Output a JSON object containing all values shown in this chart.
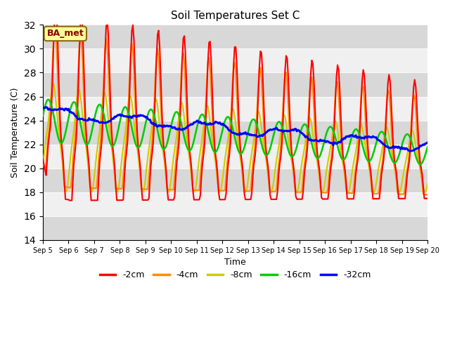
{
  "title": "Soil Temperatures Set C",
  "xlabel": "Time",
  "ylabel": "Soil Temperature (C)",
  "ylim": [
    14,
    32
  ],
  "yticks": [
    14,
    16,
    18,
    20,
    22,
    24,
    26,
    28,
    30,
    32
  ],
  "background_color": "#ffffff",
  "plot_bg_light": "#f0f0f0",
  "plot_bg_dark": "#d8d8d8",
  "annotation_text": "BA_met",
  "annotation_bg": "#ffff99",
  "annotation_border": "#8B6914",
  "annotation_text_color": "#8B0000",
  "depths": [
    "-2cm",
    "-4cm",
    "-8cm",
    "-16cm",
    "-32cm"
  ],
  "colors": [
    "#ff0000",
    "#ff8c00",
    "#cccc00",
    "#00cc00",
    "#0000ff"
  ],
  "linewidths": [
    1.5,
    1.5,
    1.5,
    1.8,
    2.2
  ]
}
